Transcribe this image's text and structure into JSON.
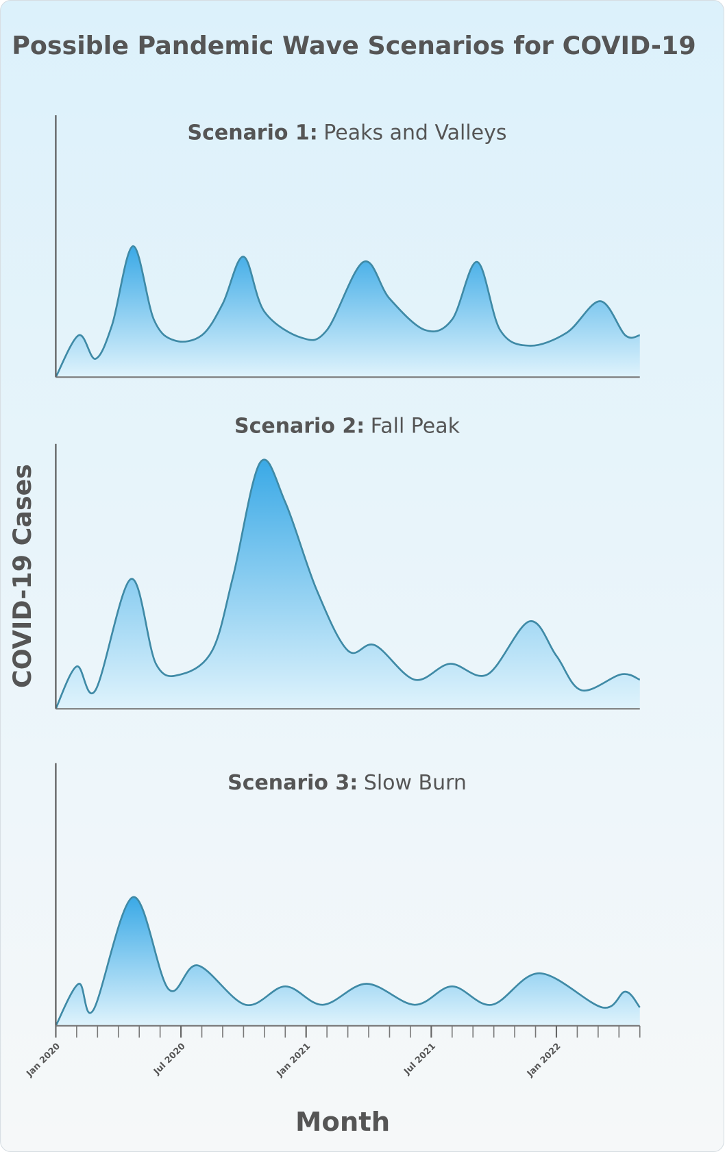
{
  "title": "Possible Pandemic Wave Scenarios for COVID-19",
  "ylabel": "COVID-19 Cases",
  "xlabel": "Month",
  "chart_data": [
    {
      "type": "area",
      "title_prefix": "Scenario 1:",
      "title": "Peaks and Valleys",
      "x": [
        0,
        1.1,
        1.9,
        2.7,
        3.7,
        4.7,
        5.7,
        7,
        8,
        9,
        10,
        11.8,
        13,
        14.75,
        16,
        17.7,
        19,
        20.2,
        21.3,
        22.7,
        24.5,
        26.1,
        27.3,
        28
      ],
      "values": [
        0,
        16,
        7,
        20,
        50,
        22,
        14,
        16,
        28,
        46,
        25,
        15,
        18,
        44,
        30,
        18,
        22,
        44,
        18,
        12,
        17,
        29,
        16,
        16
      ],
      "xlim": [
        0,
        28
      ],
      "ylim": [
        0,
        100
      ],
      "color": "#3f8aa6"
    },
    {
      "type": "area",
      "title_prefix": "Scenario 2:",
      "title": "Fall Peak",
      "x": [
        0,
        1,
        1.9,
        3.6,
        4.8,
        6,
        7.5,
        8.5,
        9.8,
        11,
        12.5,
        14,
        15.3,
        17.2,
        18.9,
        20.7,
        22.7,
        24,
        25.2,
        27.1,
        28
      ],
      "values": [
        0,
        16,
        7,
        49,
        17,
        13,
        22,
        50,
        93,
        78,
        45,
        22,
        24,
        11,
        17,
        13,
        33,
        20,
        7,
        13,
        11
      ],
      "xlim": [
        0,
        28
      ],
      "ylim": [
        0,
        100
      ],
      "color": "#3f8aa6"
    },
    {
      "type": "area",
      "title_prefix": "Scenario 3:",
      "title": "Slow Burn",
      "x": [
        0,
        1.1,
        1.8,
        3.7,
        5.4,
        6.8,
        9.1,
        11,
        12.8,
        14.9,
        17.2,
        19,
        20.9,
        23.2,
        26.2,
        27.3,
        28
      ],
      "values": [
        0,
        16,
        6,
        49,
        14,
        23,
        8,
        15,
        8,
        16,
        8,
        15,
        8,
        20,
        7,
        13,
        7
      ],
      "xlim": [
        0,
        28
      ],
      "ylim": [
        0,
        100
      ],
      "color": "#3f8aa6",
      "xticks": [
        {
          "value": 0,
          "label": "Jan 2020"
        },
        {
          "value": 6,
          "label": "Jul 2020"
        },
        {
          "value": 12,
          "label": "Jan 2021"
        },
        {
          "value": 18,
          "label": "Jul 2021"
        },
        {
          "value": 24,
          "label": "Jan 2022"
        }
      ],
      "xminorticks": [
        0,
        1,
        2,
        3,
        4,
        5,
        6,
        7,
        8,
        9,
        10,
        11,
        12,
        13,
        14,
        15,
        16,
        17,
        18,
        19,
        20,
        21,
        22,
        23,
        24,
        25,
        26,
        27,
        28
      ]
    }
  ]
}
